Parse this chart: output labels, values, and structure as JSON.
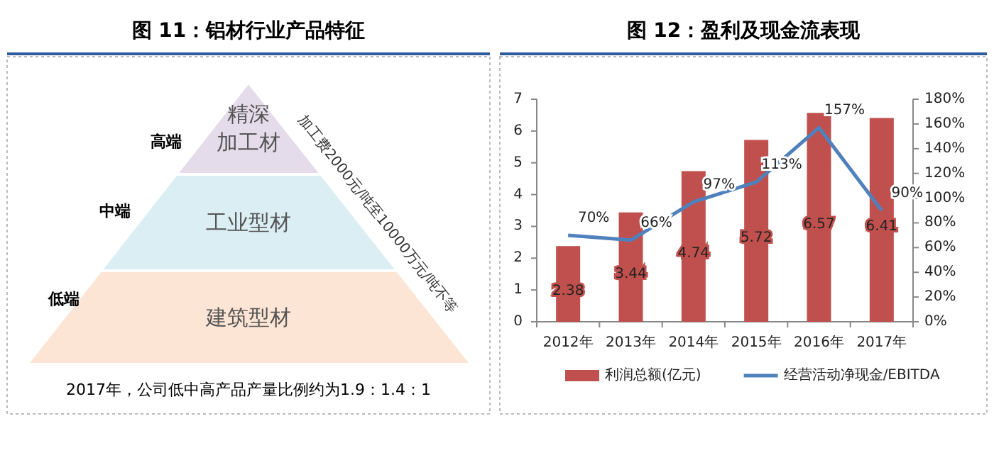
{
  "chart_data": [
    {
      "type": "other",
      "title": "图 11：铝材行业产品特征",
      "categories": [
        "精深加工材",
        "工业型材",
        "建筑型材"
      ],
      "colors": [
        "#e4dcea",
        "#dbeef4",
        "#fce5d4"
      ],
      "y_categories": [
        "高端",
        "中端",
        "低端"
      ],
      "annotations": [
        "加工费2000元/吨至10000万元/吨不等",
        "2017年，公司低中高产品产量比例约为1.9：1.4：1"
      ]
    },
    {
      "type": "bar",
      "title": "图 12：盈利及现金流表现",
      "categories": [
        "2012年",
        "2013年",
        "2014年",
        "2015年",
        "2016年",
        "2017年"
      ],
      "ylim": [
        0,
        7
      ],
      "yticks": [
        0,
        1,
        2,
        3,
        4,
        5,
        6,
        7
      ],
      "y2lim": [
        0,
        180
      ],
      "y2ticks": [
        {
          "value": 0,
          "label": "0%"
        },
        {
          "value": 20,
          "label": "20%"
        },
        {
          "value": 40,
          "label": "40%"
        },
        {
          "value": 60,
          "label": "60%"
        },
        {
          "value": 80,
          "label": "80%"
        },
        {
          "value": 100,
          "label": "100%"
        },
        {
          "value": 120,
          "label": "120%"
        },
        {
          "value": 140,
          "label": "140%"
        },
        {
          "value": 160,
          "label": "160%"
        },
        {
          "value": 180,
          "label": "180%"
        }
      ],
      "legend": "bottom",
      "series": [
        {
          "type": "bar",
          "name": "利润总额(亿元)",
          "color": "#c0504d",
          "values": [
            2.38,
            3.44,
            4.74,
            5.72,
            6.57,
            6.41
          ],
          "value_labels": [
            "2.38",
            "3.44",
            "4.74",
            "5.72",
            "6.57",
            "6.41"
          ]
        },
        {
          "type": "line",
          "name": "经营活动净现金/EBITDA",
          "color": "#4f81bd",
          "axis": "y2",
          "marker": "none",
          "values": [
            70,
            66,
            97,
            113,
            157,
            90
          ],
          "value_labels": [
            "70%",
            "66%",
            "97%",
            "113%",
            "157%",
            "90%"
          ]
        }
      ]
    }
  ]
}
